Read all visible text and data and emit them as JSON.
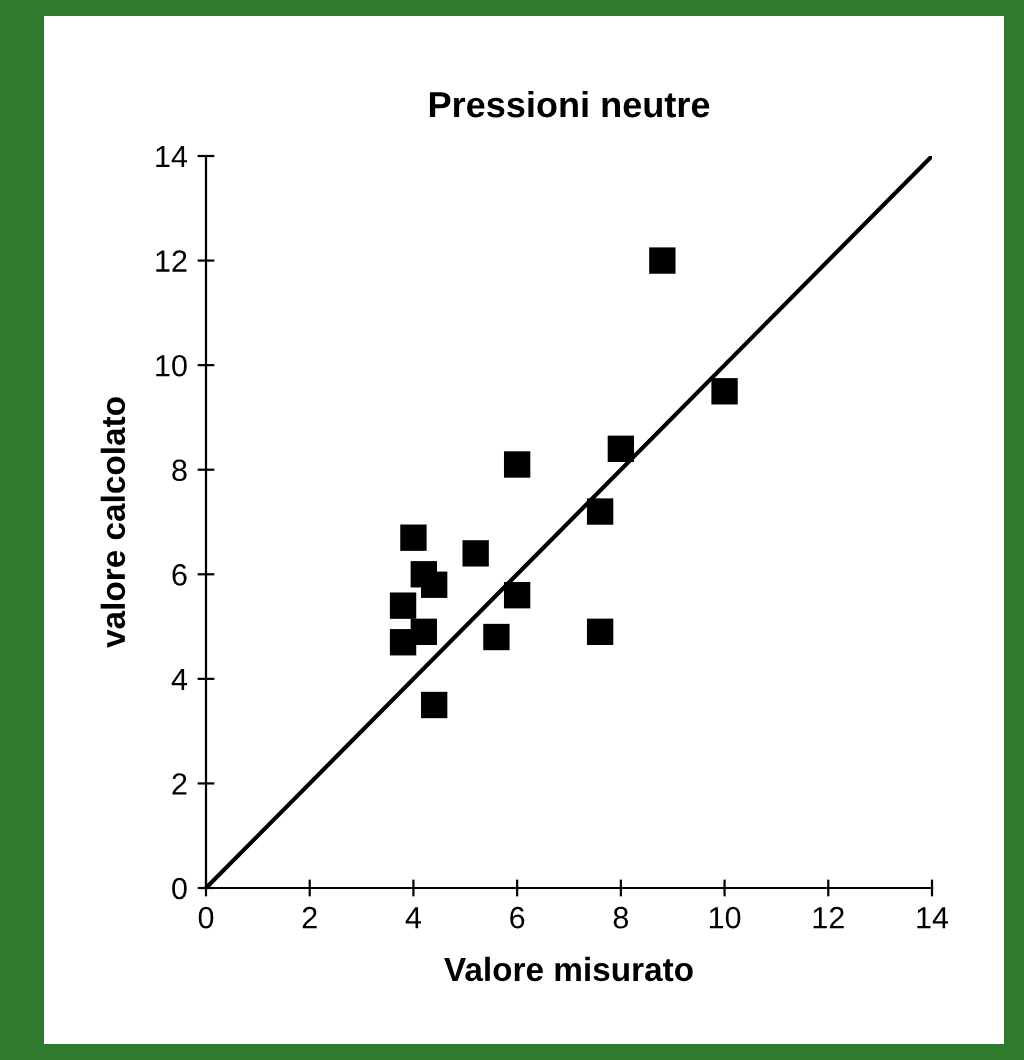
{
  "chart_data": {
    "type": "scatter",
    "title": "Pressioni neutre",
    "xlabel": "Valore misurato",
    "ylabel": "valore calcolato",
    "xlim": [
      0,
      14
    ],
    "ylim": [
      0,
      14
    ],
    "xticks": [
      0,
      2,
      4,
      6,
      8,
      10,
      12,
      14
    ],
    "yticks": [
      0,
      2,
      4,
      6,
      8,
      10,
      12,
      14
    ],
    "grid": false,
    "legend": false,
    "series": [
      {
        "marker": "square",
        "color": "#000000",
        "x": [
          8.8,
          10.0,
          8.0,
          6.0,
          7.6,
          4.0,
          5.2,
          4.2,
          4.4,
          6.0,
          3.8,
          4.2,
          3.8,
          5.6,
          7.6,
          4.4
        ],
        "values": [
          12.0,
          9.5,
          8.4,
          8.1,
          7.2,
          6.7,
          6.4,
          6.0,
          5.8,
          5.6,
          5.4,
          4.9,
          4.7,
          4.8,
          4.9,
          3.5
        ]
      },
      {
        "type": "line",
        "line_style": "solid",
        "color": "#000000",
        "x": [
          0,
          14
        ],
        "values": [
          0,
          14
        ]
      }
    ]
  }
}
